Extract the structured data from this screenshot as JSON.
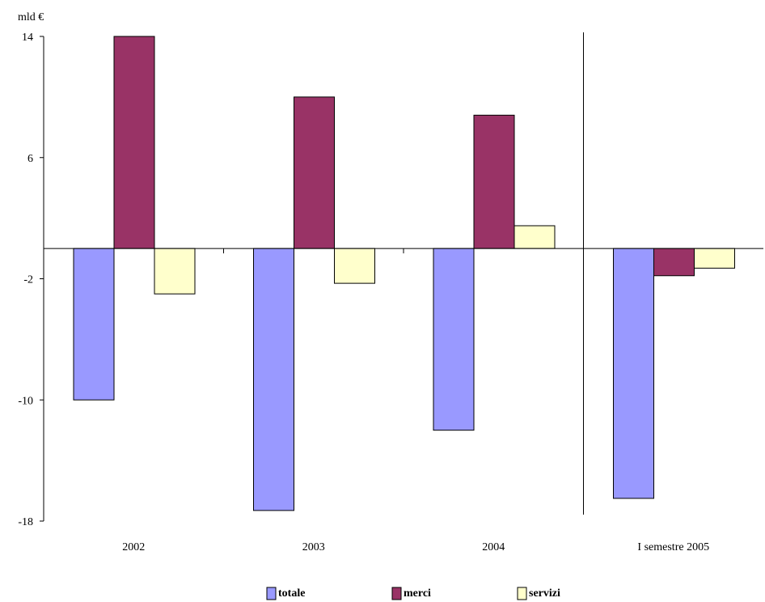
{
  "chart_data": {
    "type": "bar",
    "unit_label": "mld €",
    "categories": [
      "2002",
      "2003",
      "2004",
      "I semestre 2005"
    ],
    "series": [
      {
        "name": "totale",
        "color": "#9999ff",
        "values": [
          -10.0,
          -17.3,
          -12.0,
          -16.5
        ]
      },
      {
        "name": "merci",
        "color": "#993366",
        "values": [
          14.0,
          10.0,
          8.8,
          -1.8
        ]
      },
      {
        "name": "servizi",
        "color": "#ffffcc",
        "values": [
          -3.0,
          -2.3,
          1.5,
          -1.3
        ]
      }
    ],
    "ylim": [
      -18,
      14
    ],
    "yticks": [
      "14",
      "6",
      "-2",
      "-10",
      "-18"
    ],
    "grid": false,
    "legend_position": "bottom",
    "separator_before_category": 3
  }
}
